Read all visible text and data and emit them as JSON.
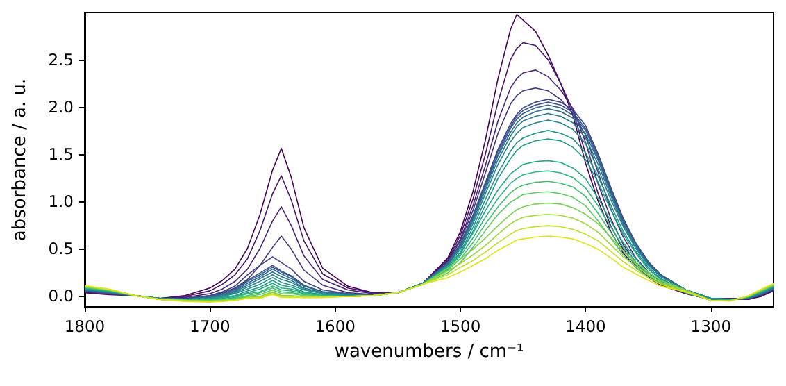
{
  "chart_data": {
    "type": "line",
    "xlabel": "wavenumbers / cm⁻¹",
    "ylabel": "absorbance / a. u.",
    "xlim": [
      1800,
      1250
    ],
    "ylim": [
      -0.12,
      3.0
    ],
    "xticks": [
      1800,
      1700,
      1600,
      1500,
      1400,
      1300
    ],
    "yticks": [
      {
        "value": 0,
        "label": "0.0"
      },
      0.5,
      {
        "value": 1,
        "label": "1.0"
      },
      1.5,
      {
        "value": 2,
        "label": "2.0"
      },
      2.5
    ],
    "x": [
      1800,
      1780,
      1760,
      1740,
      1720,
      1700,
      1690,
      1680,
      1670,
      1660,
      1650,
      1643,
      1635,
      1625,
      1610,
      1590,
      1570,
      1550,
      1530,
      1510,
      1500,
      1490,
      1480,
      1470,
      1460,
      1455,
      1450,
      1440,
      1430,
      1420,
      1410,
      1400,
      1390,
      1380,
      1370,
      1360,
      1350,
      1340,
      1320,
      1300,
      1285,
      1270,
      1260,
      1250
    ],
    "series": [
      {
        "color": "#440154",
        "values": [
          0.03,
          0.01,
          0.0,
          -0.03,
          0.0,
          0.08,
          0.16,
          0.28,
          0.5,
          0.86,
          1.33,
          1.56,
          1.25,
          0.72,
          0.29,
          0.1,
          0.03,
          0.03,
          0.13,
          0.4,
          0.68,
          1.1,
          1.65,
          2.3,
          2.82,
          2.98,
          2.92,
          2.8,
          2.55,
          2.25,
          1.9,
          1.4,
          1.0,
          0.68,
          0.45,
          0.3,
          0.19,
          0.11,
          0.02,
          -0.04,
          -0.03,
          -0.04,
          -0.01,
          0.05
        ]
      },
      {
        "color": "#471365",
        "values": [
          0.034,
          0.013,
          0.0,
          -0.03,
          -0.01,
          0.05,
          0.12,
          0.22,
          0.39,
          0.69,
          1.08,
          1.27,
          1.01,
          0.58,
          0.23,
          0.08,
          0.03,
          0.03,
          0.13,
          0.38,
          0.64,
          1.02,
          1.5,
          2.05,
          2.5,
          2.62,
          2.68,
          2.65,
          2.5,
          2.25,
          1.95,
          1.5,
          1.08,
          0.74,
          0.49,
          0.32,
          0.2,
          0.12,
          0.02,
          -0.04,
          -0.032,
          -0.038,
          -0.006,
          0.054
        ]
      },
      {
        "color": "#482475",
        "values": [
          0.038,
          0.016,
          0.0,
          -0.03,
          -0.02,
          0.02,
          0.07,
          0.15,
          0.28,
          0.5,
          0.79,
          0.94,
          0.74,
          0.42,
          0.17,
          0.06,
          0.02,
          0.03,
          0.13,
          0.37,
          0.6,
          0.95,
          1.38,
          1.85,
          2.2,
          2.3,
          2.36,
          2.39,
          2.32,
          2.18,
          1.98,
          1.62,
          1.18,
          0.82,
          0.54,
          0.35,
          0.22,
          0.13,
          0.03,
          -0.04,
          -0.033,
          -0.036,
          -0.002,
          0.058
        ]
      },
      {
        "color": "#463480",
        "values": [
          0.042,
          0.019,
          0.0,
          -0.03,
          -0.03,
          0.0,
          0.03,
          0.08,
          0.17,
          0.32,
          0.51,
          0.63,
          0.49,
          0.27,
          0.11,
          0.03,
          0.01,
          0.03,
          0.13,
          0.36,
          0.58,
          0.9,
          1.3,
          1.72,
          2.03,
          2.12,
          2.17,
          2.2,
          2.17,
          2.08,
          1.93,
          1.7,
          1.3,
          0.92,
          0.62,
          0.4,
          0.25,
          0.15,
          0.03,
          -0.04,
          -0.035,
          -0.034,
          0.002,
          0.062
        ]
      },
      {
        "color": "#414487",
        "values": [
          0.046,
          0.022,
          0.0,
          -0.03,
          -0.03,
          0.0,
          0.04,
          0.1,
          0.22,
          0.32,
          0.41,
          0.35,
          0.28,
          0.15,
          0.06,
          0.02,
          0.01,
          0.03,
          0.13,
          0.35,
          0.55,
          0.85,
          1.2,
          1.55,
          1.82,
          1.92,
          1.99,
          2.05,
          2.08,
          2.05,
          1.97,
          1.8,
          1.5,
          1.15,
          0.82,
          0.56,
          0.36,
          0.22,
          0.06,
          -0.03,
          -0.036,
          -0.032,
          0.006,
          0.066
        ]
      },
      {
        "color": "#3b528b",
        "values": [
          0.05,
          0.025,
          0.0,
          -0.03,
          -0.04,
          -0.01,
          0.02,
          0.07,
          0.16,
          0.24,
          0.32,
          0.26,
          0.21,
          0.11,
          0.04,
          0.02,
          0.01,
          0.03,
          0.13,
          0.35,
          0.54,
          0.84,
          1.19,
          1.53,
          1.79,
          1.9,
          1.96,
          2.02,
          2.05,
          2.02,
          1.94,
          1.77,
          1.48,
          1.13,
          0.8,
          0.55,
          0.35,
          0.22,
          0.06,
          -0.03,
          -0.038,
          -0.03,
          0.01,
          0.07
        ]
      },
      {
        "color": "#355f8d",
        "values": [
          0.054,
          0.028,
          0.0,
          -0.03,
          -0.04,
          -0.02,
          0.02,
          0.06,
          0.15,
          0.22,
          0.3,
          0.25,
          0.2,
          0.1,
          0.04,
          0.01,
          0.0,
          0.03,
          0.13,
          0.34,
          0.54,
          0.83,
          1.17,
          1.5,
          1.77,
          1.87,
          1.93,
          1.99,
          2.02,
          1.99,
          1.91,
          1.75,
          1.45,
          1.11,
          0.79,
          0.55,
          0.34,
          0.21,
          0.06,
          -0.03,
          -0.039,
          -0.028,
          0.014,
          0.074
        ]
      },
      {
        "color": "#2f6c8e",
        "values": [
          0.058,
          0.031,
          0.0,
          -0.03,
          -0.04,
          -0.02,
          0.01,
          0.05,
          0.13,
          0.2,
          0.28,
          0.23,
          0.18,
          0.1,
          0.04,
          0.01,
          0.0,
          0.03,
          0.13,
          0.34,
          0.52,
          0.81,
          1.15,
          1.48,
          1.73,
          1.83,
          1.89,
          1.95,
          1.98,
          1.95,
          1.88,
          1.71,
          1.43,
          1.09,
          0.77,
          0.53,
          0.34,
          0.21,
          0.06,
          -0.03,
          -0.041,
          -0.026,
          0.018,
          0.078
        ]
      },
      {
        "color": "#2a788e",
        "values": [
          0.062,
          0.034,
          0.0,
          -0.03,
          -0.04,
          -0.02,
          0.0,
          0.04,
          0.11,
          0.18,
          0.25,
          0.2,
          0.16,
          0.08,
          0.03,
          0.01,
          0.0,
          0.03,
          0.13,
          0.33,
          0.51,
          0.79,
          1.12,
          1.44,
          1.69,
          1.79,
          1.85,
          1.9,
          1.93,
          1.9,
          1.83,
          1.67,
          1.39,
          1.06,
          0.75,
          0.52,
          0.33,
          0.2,
          0.06,
          -0.03,
          -0.042,
          -0.024,
          0.022,
          0.082
        ]
      },
      {
        "color": "#25848e",
        "values": [
          0.066,
          0.037,
          0.0,
          -0.03,
          -0.04,
          -0.03,
          -0.01,
          0.03,
          0.09,
          0.15,
          0.22,
          0.17,
          0.14,
          0.07,
          0.02,
          0.0,
          0.0,
          0.03,
          0.13,
          0.32,
          0.49,
          0.76,
          1.08,
          1.39,
          1.63,
          1.72,
          1.78,
          1.83,
          1.86,
          1.83,
          1.76,
          1.61,
          1.34,
          1.02,
          0.73,
          0.5,
          0.32,
          0.2,
          0.06,
          -0.03,
          -0.044,
          -0.022,
          0.026,
          0.086
        ]
      },
      {
        "color": "#21918c",
        "values": [
          0.07,
          0.04,
          0.0,
          -0.03,
          -0.04,
          -0.03,
          -0.01,
          0.02,
          0.07,
          0.12,
          0.19,
          0.14,
          0.11,
          0.06,
          0.02,
          0.0,
          0.0,
          0.03,
          0.13,
          0.3,
          0.46,
          0.72,
          1.02,
          1.3,
          1.53,
          1.62,
          1.67,
          1.72,
          1.75,
          1.72,
          1.66,
          1.51,
          1.26,
          0.96,
          0.68,
          0.47,
          0.3,
          0.18,
          0.05,
          -0.03,
          -0.045,
          -0.02,
          0.03,
          0.09
        ]
      },
      {
        "color": "#1e9c89",
        "values": [
          0.074,
          0.043,
          0.0,
          -0.03,
          -0.04,
          -0.04,
          -0.02,
          0.0,
          0.05,
          0.09,
          0.16,
          0.11,
          0.09,
          0.04,
          0.01,
          0.0,
          0.0,
          0.03,
          0.13,
          0.28,
          0.44,
          0.68,
          0.96,
          1.24,
          1.45,
          1.54,
          1.59,
          1.64,
          1.66,
          1.64,
          1.57,
          1.44,
          1.2,
          0.91,
          0.65,
          0.45,
          0.28,
          0.17,
          0.05,
          -0.03,
          -0.047,
          -0.018,
          0.034,
          0.094
        ]
      },
      {
        "color": "#22a884",
        "values": [
          0.078,
          0.046,
          0.0,
          -0.04,
          -0.05,
          -0.04,
          -0.03,
          -0.01,
          0.03,
          0.07,
          0.13,
          0.08,
          0.07,
          0.03,
          0.0,
          -0.01,
          0.0,
          0.03,
          0.12,
          0.31,
          0.46,
          0.66,
          0.9,
          1.12,
          1.29,
          1.34,
          1.39,
          1.42,
          1.43,
          1.41,
          1.35,
          1.24,
          1.03,
          0.79,
          0.56,
          0.39,
          0.24,
          0.15,
          0.04,
          -0.05,
          -0.048,
          -0.016,
          0.038,
          0.098
        ]
      },
      {
        "color": "#2fb47c",
        "values": [
          0.082,
          0.049,
          0.0,
          -0.04,
          -0.05,
          -0.05,
          -0.04,
          -0.02,
          0.02,
          0.04,
          0.1,
          0.06,
          0.05,
          0.02,
          0.0,
          -0.01,
          0.0,
          0.03,
          0.12,
          0.29,
          0.42,
          0.61,
          0.83,
          1.03,
          1.19,
          1.24,
          1.28,
          1.31,
          1.32,
          1.3,
          1.25,
          1.14,
          0.95,
          0.73,
          0.51,
          0.36,
          0.22,
          0.14,
          0.04,
          -0.05,
          -0.05,
          -0.014,
          0.042,
          0.102
        ]
      },
      {
        "color": "#44bf70",
        "values": [
          0.086,
          0.052,
          0.0,
          -0.04,
          -0.05,
          -0.05,
          -0.04,
          -0.03,
          0.0,
          0.03,
          0.08,
          0.04,
          0.03,
          0.01,
          -0.01,
          -0.01,
          0.0,
          0.03,
          0.12,
          0.27,
          0.39,
          0.56,
          0.76,
          0.94,
          1.09,
          1.14,
          1.17,
          1.2,
          1.21,
          1.19,
          1.15,
          1.05,
          0.87,
          0.67,
          0.47,
          0.33,
          0.21,
          0.13,
          0.04,
          -0.05,
          -0.051,
          -0.012,
          0.046,
          0.106
        ]
      },
      {
        "color": "#5ec962",
        "values": [
          0.09,
          0.055,
          0.0,
          -0.04,
          -0.05,
          -0.05,
          -0.05,
          -0.04,
          -0.01,
          0.01,
          0.06,
          0.02,
          0.02,
          0.0,
          -0.01,
          -0.01,
          0.0,
          0.03,
          0.12,
          0.24,
          0.35,
          0.51,
          0.69,
          0.86,
          0.99,
          1.03,
          1.07,
          1.09,
          1.1,
          1.08,
          1.04,
          0.95,
          0.79,
          0.61,
          0.43,
          0.3,
          0.19,
          0.12,
          0.03,
          -0.05,
          -0.053,
          -0.01,
          0.05,
          0.11
        ]
      },
      {
        "color": "#7ad151",
        "values": [
          0.094,
          0.058,
          0.0,
          -0.04,
          -0.05,
          -0.06,
          -0.05,
          -0.04,
          -0.02,
          -0.01,
          0.04,
          0.0,
          0.0,
          -0.01,
          -0.01,
          -0.01,
          0.0,
          0.03,
          0.12,
          0.29,
          0.39,
          0.49,
          0.61,
          0.74,
          0.86,
          0.91,
          0.94,
          0.97,
          0.98,
          0.97,
          0.93,
          0.86,
          0.76,
          0.62,
          0.47,
          0.35,
          0.25,
          0.16,
          0.06,
          -0.05,
          -0.054,
          -0.008,
          0.054,
          0.114
        ]
      },
      {
        "color": "#9bd93c",
        "values": [
          0.098,
          0.061,
          0.0,
          -0.04,
          -0.05,
          -0.06,
          -0.05,
          -0.05,
          -0.02,
          -0.02,
          0.03,
          -0.01,
          -0.01,
          -0.02,
          -0.01,
          -0.01,
          0.0,
          0.03,
          0.12,
          0.26,
          0.34,
          0.43,
          0.53,
          0.65,
          0.76,
          0.8,
          0.83,
          0.85,
          0.86,
          0.85,
          0.82,
          0.76,
          0.67,
          0.54,
          0.41,
          0.31,
          0.22,
          0.14,
          0.05,
          -0.05,
          -0.056,
          -0.006,
          0.058,
          0.118
        ]
      },
      {
        "color": "#bddf26",
        "values": [
          0.102,
          0.064,
          0.0,
          -0.04,
          -0.06,
          -0.06,
          -0.06,
          -0.05,
          -0.03,
          -0.02,
          0.02,
          -0.01,
          -0.01,
          -0.02,
          -0.02,
          -0.01,
          0.0,
          0.03,
          0.12,
          0.22,
          0.3,
          0.37,
          0.46,
          0.56,
          0.65,
          0.69,
          0.71,
          0.73,
          0.74,
          0.73,
          0.7,
          0.65,
          0.58,
          0.47,
          0.36,
          0.27,
          0.19,
          0.12,
          0.04,
          -0.05,
          -0.057,
          -0.004,
          0.062,
          0.122
        ]
      },
      {
        "color": "#dfe318",
        "values": [
          0.106,
          0.067,
          0.0,
          -0.04,
          -0.06,
          -0.07,
          -0.06,
          -0.05,
          -0.03,
          -0.03,
          0.01,
          -0.02,
          -0.02,
          -0.02,
          -0.02,
          -0.01,
          0.0,
          0.03,
          0.12,
          0.19,
          0.25,
          0.32,
          0.39,
          0.48,
          0.55,
          0.59,
          0.6,
          0.62,
          0.63,
          0.62,
          0.6,
          0.55,
          0.49,
          0.4,
          0.3,
          0.23,
          0.16,
          0.1,
          0.04,
          -0.05,
          -0.059,
          -0.002,
          0.066,
          0.126
        ]
      }
    ]
  }
}
